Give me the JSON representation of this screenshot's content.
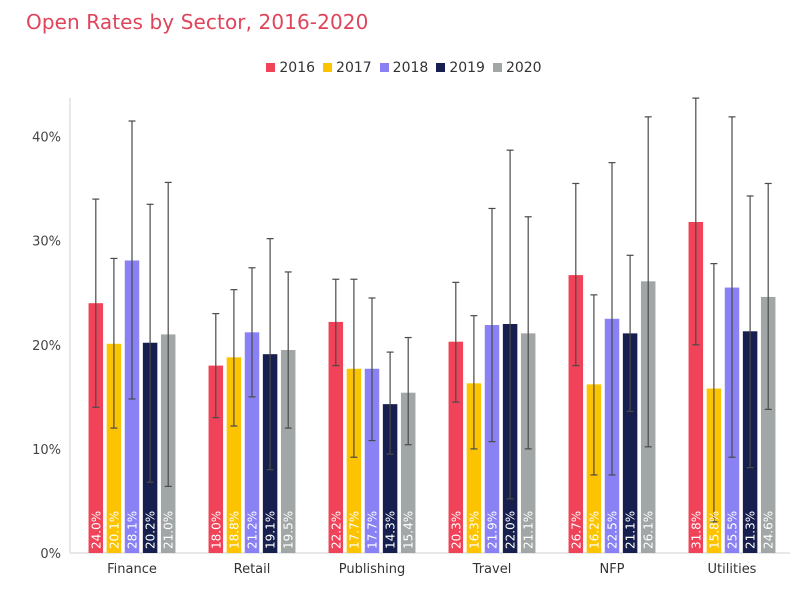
{
  "title": "Open Rates by Sector, 2016-2020",
  "chart_data": {
    "type": "bar",
    "title": "Open Rates by Sector, 2016-2020",
    "categories": [
      "Finance",
      "Retail",
      "Publishing",
      "Travel",
      "NFP",
      "Utilities"
    ],
    "ylim": [
      0,
      0.44
    ],
    "yticks": [
      "0%",
      "10%",
      "20%",
      "30%",
      "40%"
    ],
    "ytick_values": [
      0,
      0.1,
      0.2,
      0.3,
      0.4
    ],
    "legend_position": "top-center",
    "grid": false,
    "series": [
      {
        "name": "2016",
        "color": "#f04359",
        "values": [
          0.24,
          0.18,
          0.222,
          0.203,
          0.267,
          0.318
        ],
        "labels": [
          "24.0%",
          "18.0%",
          "22.2%",
          "20.3%",
          "26.7%",
          "31.8%"
        ],
        "err_low": [
          0.14,
          0.13,
          0.18,
          0.145,
          0.18,
          0.2
        ],
        "err_high": [
          0.34,
          0.23,
          0.263,
          0.26,
          0.355,
          0.437
        ]
      },
      {
        "name": "2017",
        "color": "#fcc400",
        "values": [
          0.201,
          0.188,
          0.177,
          0.163,
          0.162,
          0.158
        ],
        "labels": [
          "20.1%",
          "18.8%",
          "17.7%",
          "16.3%",
          "16.2%",
          "15.8%"
        ],
        "err_low": [
          0.12,
          0.122,
          0.092,
          0.1,
          0.075,
          0.03
        ],
        "err_high": [
          0.283,
          0.253,
          0.263,
          0.228,
          0.248,
          0.278
        ]
      },
      {
        "name": "2018",
        "color": "#8a82f4",
        "values": [
          0.281,
          0.212,
          0.177,
          0.219,
          0.225,
          0.255
        ],
        "labels": [
          "28.1%",
          "21.2%",
          "17.7%",
          "21.9%",
          "22.5%",
          "25.5%"
        ],
        "err_low": [
          0.148,
          0.15,
          0.108,
          0.107,
          0.075,
          0.092
        ],
        "err_high": [
          0.415,
          0.274,
          0.245,
          0.331,
          0.375,
          0.419
        ]
      },
      {
        "name": "2019",
        "color": "#171f4e",
        "values": [
          0.202,
          0.191,
          0.143,
          0.22,
          0.211,
          0.213
        ],
        "labels": [
          "20.2%",
          "19.1%",
          "14.3%",
          "22.0%",
          "21.1%",
          "21.3%"
        ],
        "err_low": [
          0.068,
          0.08,
          0.095,
          0.052,
          0.136,
          0.082
        ],
        "err_high": [
          0.335,
          0.302,
          0.193,
          0.387,
          0.286,
          0.343
        ]
      },
      {
        "name": "2020",
        "color": "#a0a7a6",
        "values": [
          0.21,
          0.195,
          0.154,
          0.211,
          0.261,
          0.246
        ],
        "labels": [
          "21.0%",
          "19.5%",
          "15.4%",
          "21.1%",
          "26.1%",
          "24.6%"
        ],
        "err_low": [
          0.064,
          0.12,
          0.104,
          0.1,
          0.102,
          0.138
        ],
        "err_high": [
          0.356,
          0.27,
          0.207,
          0.323,
          0.419,
          0.355
        ]
      }
    ]
  }
}
